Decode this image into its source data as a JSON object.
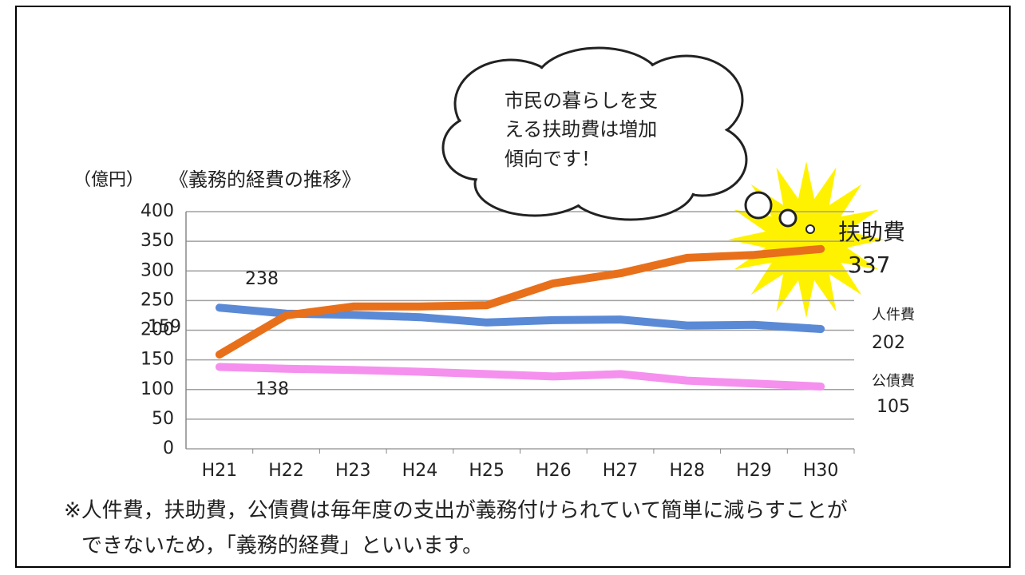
{
  "chart_data": {
    "type": "line",
    "title": "《義務的経費の推移》",
    "y_unit": "（億円）",
    "categories": [
      "H21",
      "H22",
      "H23",
      "H24",
      "H25",
      "H26",
      "H27",
      "H28",
      "H29",
      "H30"
    ],
    "series": [
      {
        "name": "人件費",
        "color": "#5a8ad6",
        "values": [
          238,
          228,
          226,
          222,
          213,
          217,
          218,
          208,
          209,
          202
        ]
      },
      {
        "name": "扶助費",
        "color": "#e8701a",
        "values": [
          159,
          225,
          240,
          240,
          242,
          279,
          296,
          322,
          327,
          337
        ]
      },
      {
        "name": "公債費",
        "color": "#f590ee",
        "values": [
          138,
          135,
          133,
          130,
          126,
          122,
          126,
          115,
          110,
          105
        ]
      }
    ],
    "ylim": [
      0,
      400
    ],
    "yticks": [
      0,
      50,
      100,
      150,
      200,
      250,
      300,
      350,
      400
    ],
    "grid": true,
    "callout": [
      "市民の暮らしを支",
      "える扶助費は増加",
      "傾向です！"
    ],
    "note": [
      "※人件費，扶助費，公債費は毎年度の支出が義務付けられていて簡単に減らすことが",
      "できないため，「義務的経費」といいます。"
    ]
  }
}
